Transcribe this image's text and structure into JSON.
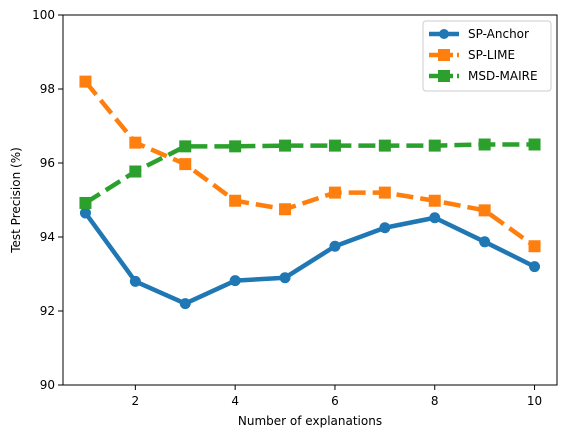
{
  "chart_data": {
    "type": "line",
    "title": "",
    "xlabel": "Number of explanations",
    "ylabel": "Test Precision (%)",
    "xlim": [
      0.55,
      10.45
    ],
    "ylim": [
      90,
      100
    ],
    "xticks": [
      2,
      4,
      6,
      8,
      10
    ],
    "yticks": [
      90,
      92,
      94,
      96,
      98,
      100
    ],
    "grid": false,
    "legend_position": "top-right",
    "x": [
      1,
      2,
      3,
      4,
      5,
      6,
      7,
      8,
      9,
      10
    ],
    "series": [
      {
        "name": "SP-Anchor",
        "color": "#1f77b4",
        "line_style": "solid",
        "marker": "circle",
        "values": [
          94.65,
          92.8,
          92.2,
          92.82,
          92.9,
          93.75,
          94.25,
          94.52,
          93.87,
          93.2
        ]
      },
      {
        "name": "SP-LIME",
        "color": "#ff7f0e",
        "line_style": "dashed",
        "marker": "square",
        "values": [
          98.2,
          96.55,
          95.97,
          94.98,
          94.75,
          95.2,
          95.2,
          94.98,
          94.72,
          93.75
        ]
      },
      {
        "name": "MSD-MAIRE",
        "color": "#2ca02c",
        "line_style": "dashed",
        "marker": "square",
        "values": [
          94.92,
          95.77,
          96.45,
          96.45,
          96.47,
          96.47,
          96.47,
          96.47,
          96.5,
          96.5
        ]
      }
    ]
  }
}
